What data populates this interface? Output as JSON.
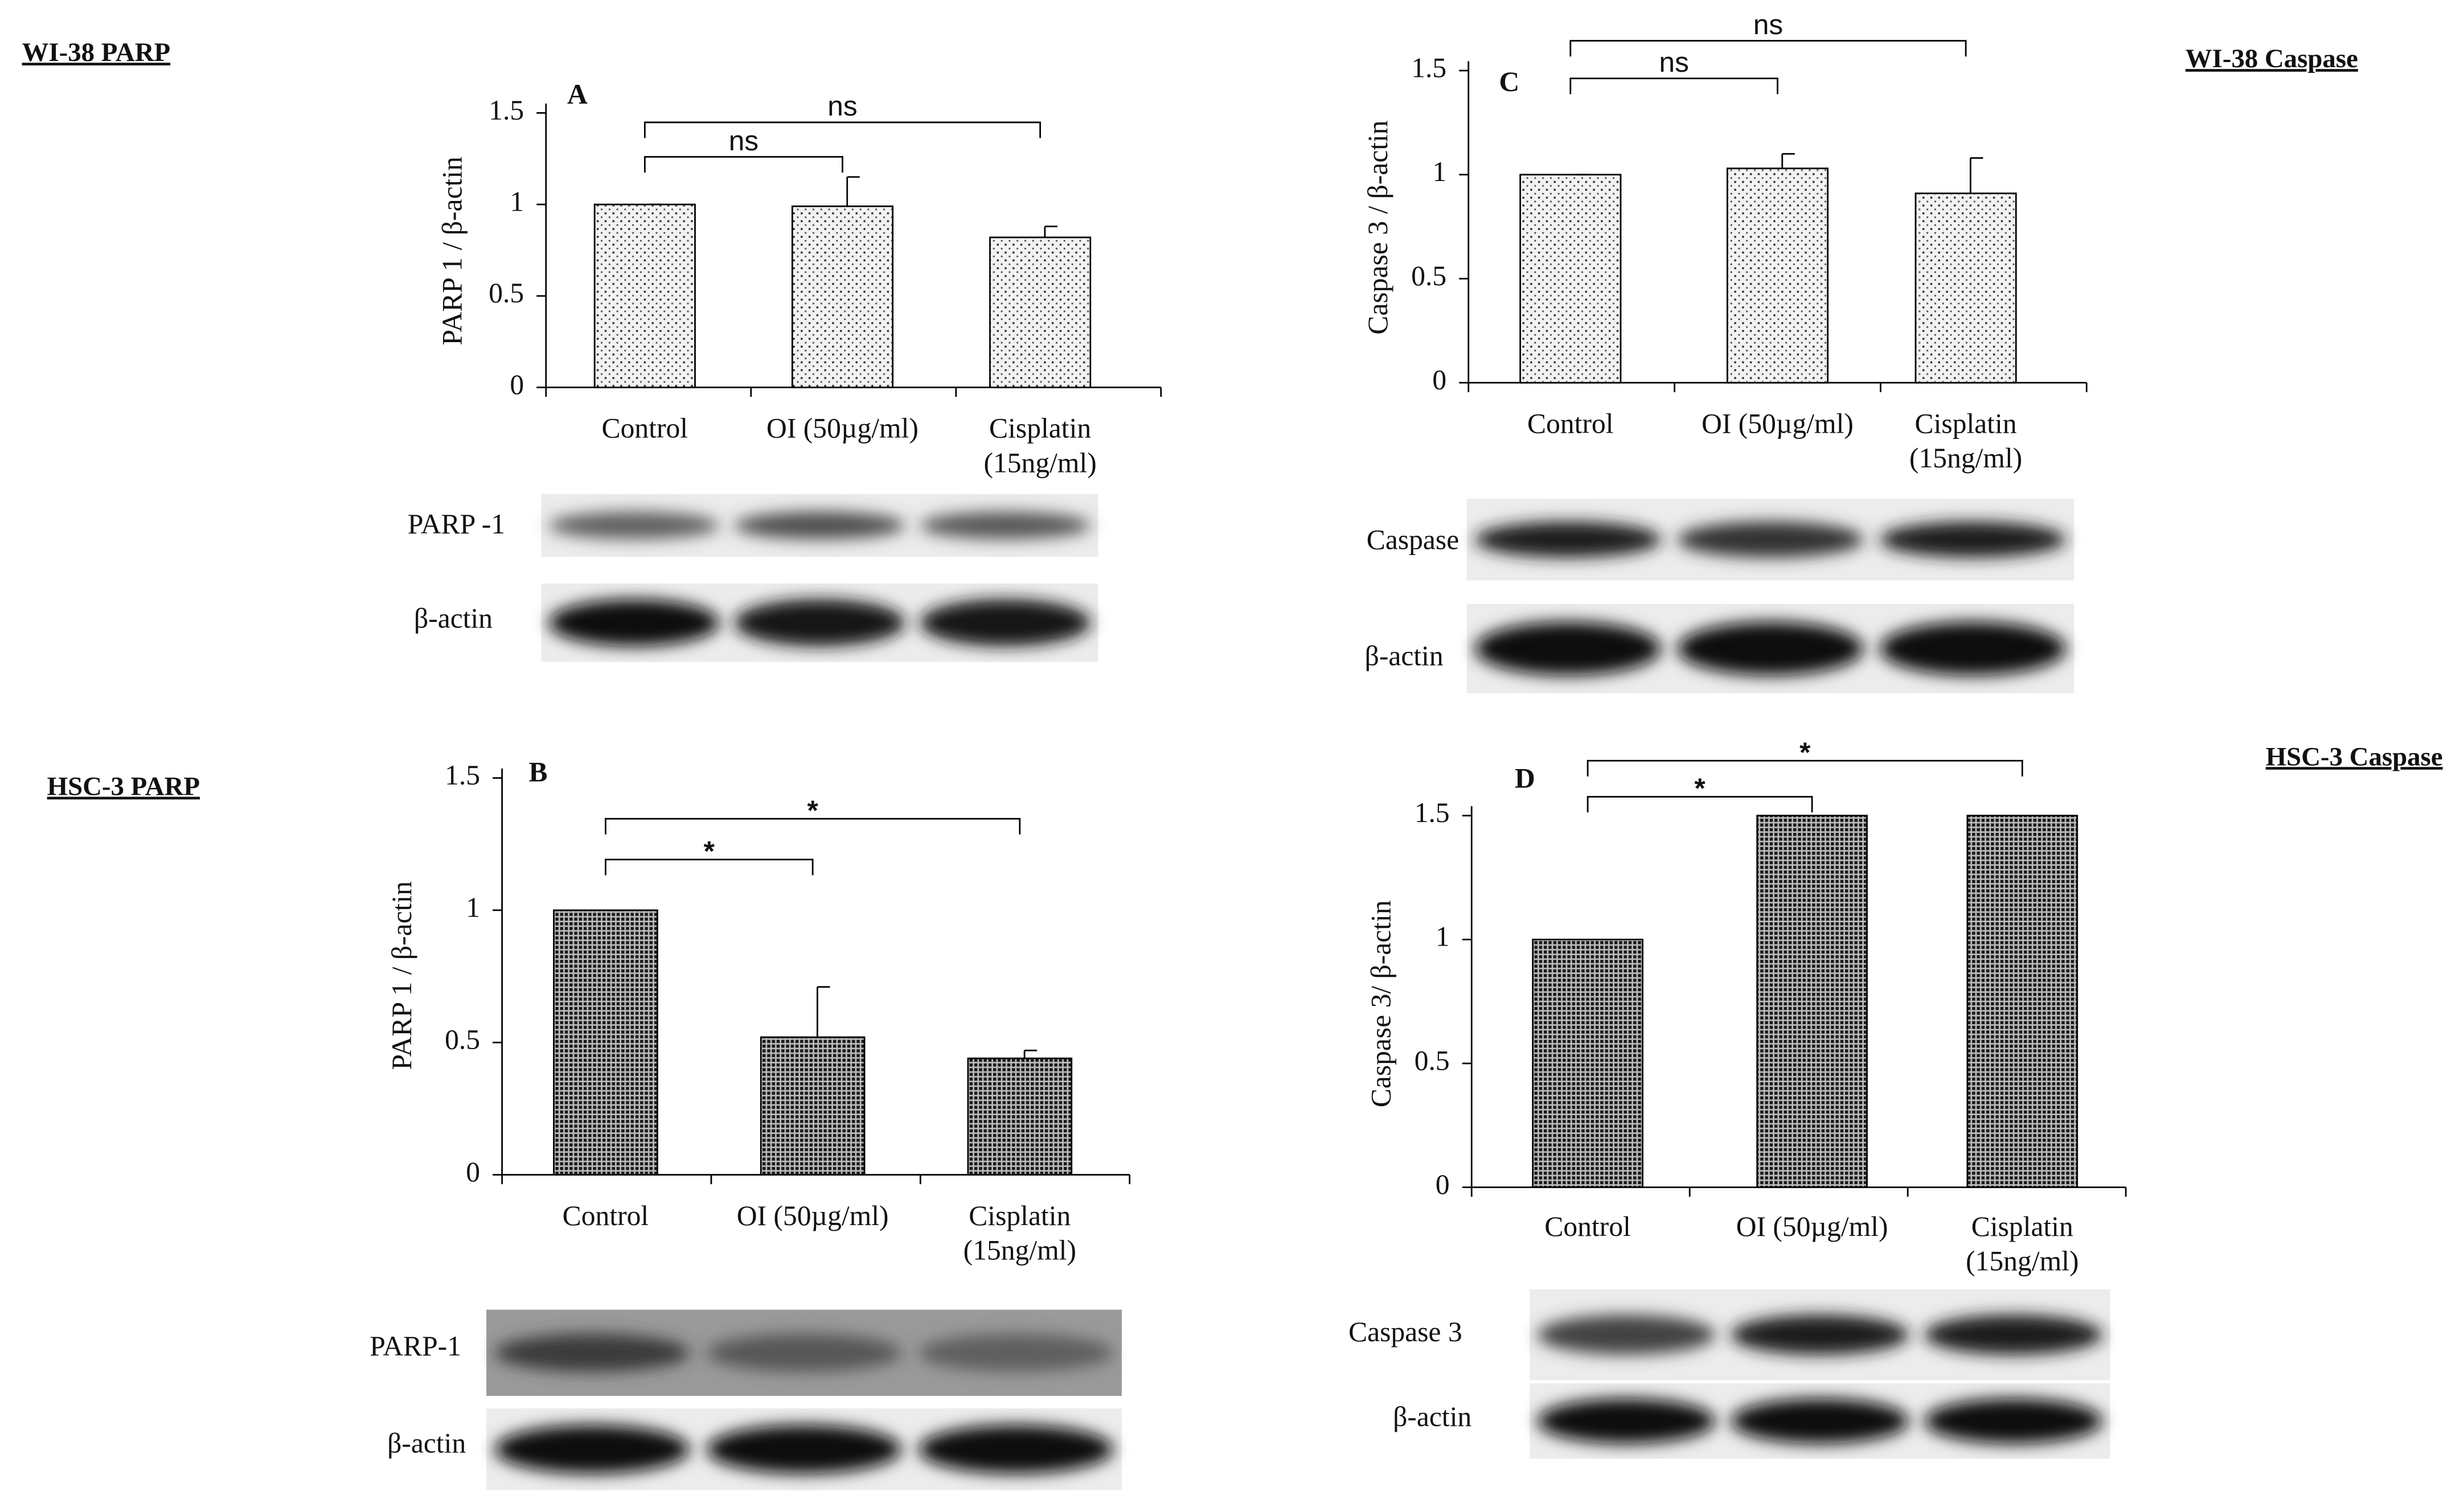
{
  "chart_data": [
    {
      "type": "bar",
      "panel_title": "WI-38 PARP",
      "panel_label": "A",
      "y_label": "PARP 1 / β-actin",
      "categories": [
        "Control",
        "OI (50µg/ml)",
        "Cisplatin (15ng/ml)"
      ],
      "values": [
        1,
        0.99,
        0.82
      ],
      "errors": [
        0,
        0.16,
        0.06
      ],
      "color": "#f2f2f2",
      "ylim": [
        0,
        1.5
      ],
      "yticks": [
        0,
        0.5,
        1,
        1.5
      ],
      "annotations": [
        "ns",
        "ns"
      ],
      "blot_labels": [
        "PARP -1",
        "β-actin"
      ]
    },
    {
      "type": "bar",
      "panel_title": "HSC-3 PARP",
      "panel_label": "B",
      "y_label": "PARP 1 / β-actin",
      "categories": [
        "Control",
        "OI (50µg/ml)",
        "Cisplatin (15ng/ml)"
      ],
      "values": [
        1,
        0.52,
        0.44
      ],
      "errors": [
        0,
        0.19,
        0.03
      ],
      "color": "#4a4a4a",
      "ylim": [
        0,
        1.5
      ],
      "yticks": [
        0,
        0.5,
        1,
        1.5
      ],
      "annotations": [
        "*",
        "*"
      ],
      "blot_labels": [
        "PARP-1",
        "β-actin"
      ]
    },
    {
      "type": "bar",
      "panel_title": "WI-38 Caspase",
      "panel_label": "C",
      "y_label": "Caspase 3 / β-actin",
      "categories": [
        "Control",
        "OI (50µg/ml)",
        "Cisplatin (15ng/ml)"
      ],
      "values": [
        1,
        1.03,
        0.91
      ],
      "errors": [
        0,
        0.07,
        0.17
      ],
      "color": "#f2f2f2",
      "ylim": [
        0,
        1.5
      ],
      "yticks": [
        0,
        0.5,
        1,
        1.5
      ],
      "annotations": [
        "ns",
        "ns"
      ],
      "blot_labels": [
        "Caspase",
        "β-actin"
      ]
    },
    {
      "type": "bar",
      "panel_title": "HSC-3 Caspase",
      "panel_label": "D",
      "y_label": "Caspase 3/ β-actin",
      "categories": [
        "Control",
        "OI (50µg/ml)",
        "Cisplatin (15ng/ml)"
      ],
      "values": [
        1,
        1.5,
        1.5
      ],
      "color": "#4a4a4a",
      "ylim": [
        0,
        1.5
      ],
      "yticks": [
        0,
        0.5,
        1,
        1.5
      ],
      "annotations": [
        "*",
        "*"
      ],
      "blot_labels": [
        "Caspase 3",
        "β-actin"
      ]
    }
  ]
}
